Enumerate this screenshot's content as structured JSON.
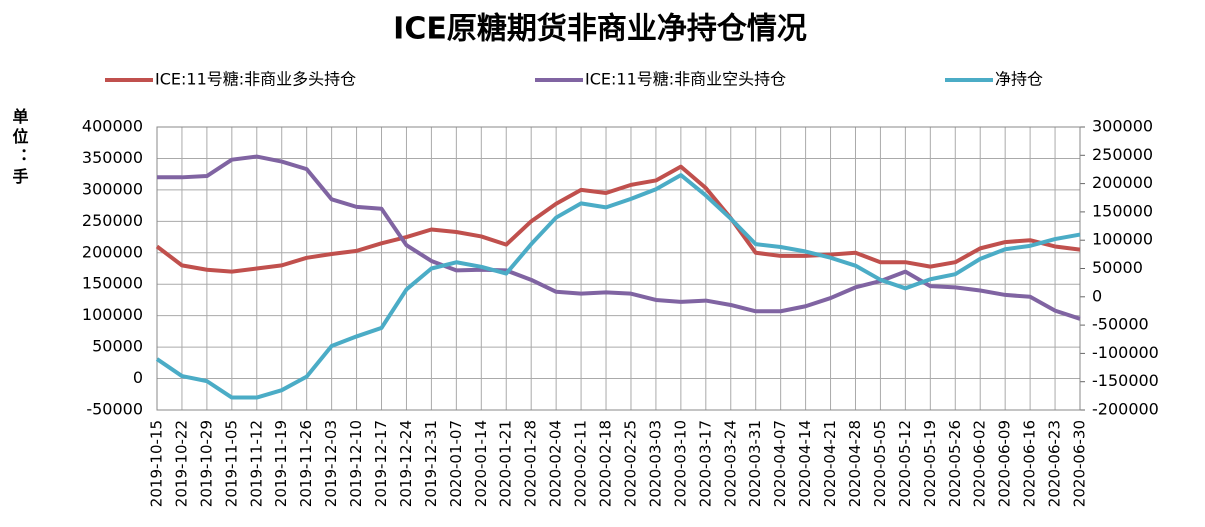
{
  "chart_data": {
    "type": "line",
    "title": "ICE原糖期货非商业净持仓情况",
    "y_label": "单位：手",
    "x": [
      "2019-10-15",
      "2019-10-22",
      "2019-10-29",
      "2019-11-05",
      "2019-11-12",
      "2019-11-19",
      "2019-11-26",
      "2019-12-03",
      "2019-12-10",
      "2019-12-17",
      "2019-12-24",
      "2019-12-31",
      "2020-01-07",
      "2020-01-14",
      "2020-01-21",
      "2020-01-28",
      "2020-02-04",
      "2020-02-11",
      "2020-02-18",
      "2020-02-25",
      "2020-03-03",
      "2020-03-10",
      "2020-03-17",
      "2020-03-24",
      "2020-03-31",
      "2020-04-07",
      "2020-04-14",
      "2020-04-21",
      "2020-04-28",
      "2020-05-05",
      "2020-05-12",
      "2020-05-19",
      "2020-05-26",
      "2020-06-02",
      "2020-06-09",
      "2020-06-16",
      "2020-06-23",
      "2020-06-30"
    ],
    "series": [
      {
        "name": "ICE:11号糖:非商业多头持仓",
        "color": "#c0504d",
        "values": [
          210000,
          180000,
          173000,
          170000,
          175000,
          180000,
          192000,
          198000,
          203000,
          215000,
          225000,
          237000,
          233000,
          226000,
          213000,
          250000,
          278000,
          300000,
          295000,
          308000,
          315000,
          337000,
          303000,
          255000,
          200000,
          195000,
          195000,
          197000,
          200000,
          185000,
          185000,
          178000,
          185000,
          207000,
          217000,
          220000,
          210000,
          205000
        ]
      },
      {
        "name": "ICE:11号糖:非商业空头持仓",
        "color": "#8064a2",
        "values": [
          320000,
          320000,
          322000,
          348000,
          353000,
          345000,
          333000,
          285000,
          273000,
          270000,
          212000,
          187000,
          172000,
          173000,
          172000,
          157000,
          138000,
          135000,
          137000,
          135000,
          125000,
          122000,
          124000,
          117000,
          107000,
          107000,
          115000,
          128000,
          145000,
          155000,
          170000,
          147000,
          145000,
          140000,
          133000,
          130000,
          108000,
          95000
        ]
      },
      {
        "name": "净持仓",
        "color": "#4bacc6",
        "axis": "y2",
        "values": [
          -110000,
          -140000,
          -149000,
          -178000,
          -178000,
          -165000,
          -141000,
          -87000,
          -70000,
          -55000,
          13000,
          50000,
          61000,
          53000,
          41000,
          93000,
          140000,
          165000,
          158000,
          173000,
          190000,
          215000,
          179000,
          138000,
          93000,
          88000,
          80000,
          69000,
          55000,
          30000,
          15000,
          31000,
          40000,
          67000,
          84000,
          90000,
          102000,
          110000
        ]
      }
    ],
    "ylim": [
      -50000,
      400000
    ],
    "yticks": [
      -50000,
      0,
      50000,
      100000,
      150000,
      200000,
      250000,
      300000,
      350000,
      400000
    ],
    "y2lim": [
      -200000,
      300000
    ],
    "y2ticks": [
      -200000,
      -150000,
      -100000,
      -50000,
      0,
      50000,
      100000,
      150000,
      200000,
      250000,
      300000
    ],
    "grid": true
  }
}
